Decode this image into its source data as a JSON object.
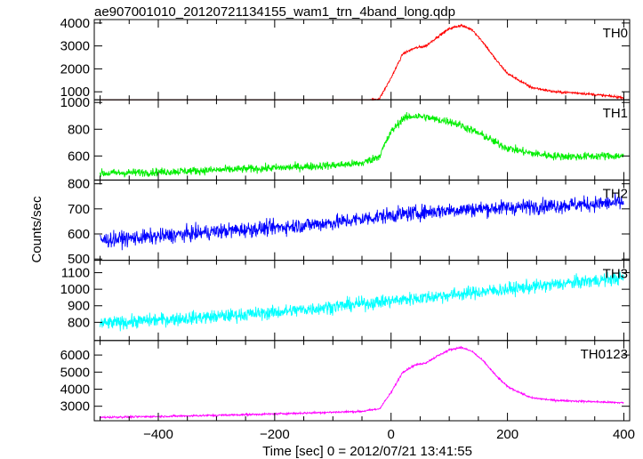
{
  "title": "ae907001010_20120721134155_wam1_trn_4band_long.qdp",
  "xlabel": "Time [sec] 0 = 2012/07/21 13:41:55",
  "ylabel": "Counts/sec",
  "chart_data": {
    "type": "line",
    "title": "ae907001010_20120721134155_wam1_trn_4band_long.qdp",
    "xlabel": "Time [sec] 0 = 2012/07/21 13:41:55",
    "ylabel": "Counts/sec",
    "xlim": [
      -510,
      410
    ],
    "xticks": [
      -400,
      -200,
      0,
      200,
      400
    ],
    "grid": false,
    "panels": [
      {
        "name": "TH0",
        "color": "#ff0000",
        "ylim": [
          650,
          4150
        ],
        "yticks": [
          1000,
          2000,
          3000,
          4000
        ],
        "noise": 55,
        "x": [
          -500,
          -400,
          -300,
          -200,
          -100,
          -50,
          -20,
          0,
          20,
          40,
          60,
          80,
          100,
          120,
          140,
          160,
          180,
          200,
          240,
          280,
          320,
          360,
          400
        ],
        "y": [
          400,
          430,
          460,
          480,
          520,
          560,
          700,
          1600,
          2650,
          2900,
          3000,
          3400,
          3750,
          3900,
          3700,
          3100,
          2400,
          1800,
          1200,
          1000,
          950,
          850,
          750
        ]
      },
      {
        "name": "TH1",
        "color": "#00ee00",
        "ylim": [
          420,
          1020
        ],
        "yticks": [
          600,
          800,
          1000
        ],
        "noise": 30,
        "x": [
          -500,
          -400,
          -300,
          -200,
          -100,
          -50,
          -20,
          0,
          20,
          40,
          60,
          80,
          100,
          120,
          140,
          160,
          180,
          200,
          240,
          280,
          320,
          360,
          400
        ],
        "y": [
          470,
          480,
          495,
          510,
          530,
          545,
          600,
          780,
          880,
          900,
          890,
          870,
          860,
          830,
          790,
          750,
          700,
          660,
          620,
          600,
          595,
          600,
          600
        ]
      },
      {
        "name": "TH2",
        "color": "#0000ff",
        "ylim": [
          495,
          815
        ],
        "yticks": [
          500,
          600,
          700,
          800
        ],
        "noise": 30,
        "x": [
          -500,
          -400,
          -300,
          -200,
          -100,
          0,
          100,
          200,
          300,
          400
        ],
        "y": [
          575,
          590,
          610,
          625,
          645,
          675,
          695,
          705,
          715,
          725
        ]
      },
      {
        "name": "TH3",
        "color": "#00ffff",
        "ylim": [
          690,
          1175
        ],
        "yticks": [
          800,
          900,
          1000,
          1100
        ],
        "noise": 40,
        "x": [
          -500,
          -400,
          -300,
          -200,
          -100,
          0,
          100,
          200,
          300,
          400
        ],
        "y": [
          790,
          815,
          835,
          860,
          895,
          930,
          965,
          1000,
          1035,
          1070
        ]
      },
      {
        "name": "TH0123",
        "color": "#ff00ff",
        "ylim": [
          2150,
          6850
        ],
        "yticks": [
          3000,
          4000,
          5000,
          6000
        ],
        "noise": 55,
        "x": [
          -500,
          -400,
          -300,
          -200,
          -100,
          -50,
          -20,
          0,
          20,
          40,
          60,
          80,
          100,
          120,
          140,
          160,
          180,
          200,
          240,
          280,
          320,
          360,
          400
        ],
        "y": [
          2350,
          2400,
          2470,
          2550,
          2650,
          2700,
          2850,
          3800,
          5000,
          5400,
          5550,
          5950,
          6300,
          6450,
          6200,
          5600,
          4800,
          4150,
          3500,
          3350,
          3300,
          3250,
          3200
        ]
      }
    ]
  }
}
